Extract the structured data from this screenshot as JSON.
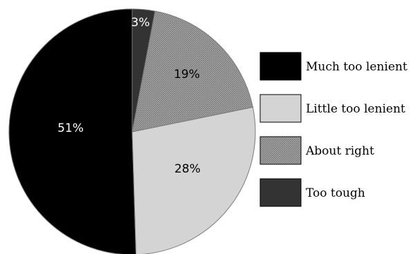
{
  "chart_data": {
    "type": "pie",
    "title": "",
    "slices": [
      {
        "label": "Much too lenient",
        "value": 51,
        "display": "51%",
        "color": "#000000",
        "text_color": "#ffffff"
      },
      {
        "label": "Little too lenient",
        "value": 28,
        "display": "28%",
        "color": "#d4d4d4",
        "text_color": "#000000"
      },
      {
        "label": "About right",
        "value": 19,
        "display": "19%",
        "color": "#8a8a8a",
        "text_color": "#000000"
      },
      {
        "label": "Too tough",
        "value": 3,
        "display": "3%",
        "color": "#333333",
        "text_color": "#ffffff"
      }
    ],
    "legend_position": "right"
  }
}
